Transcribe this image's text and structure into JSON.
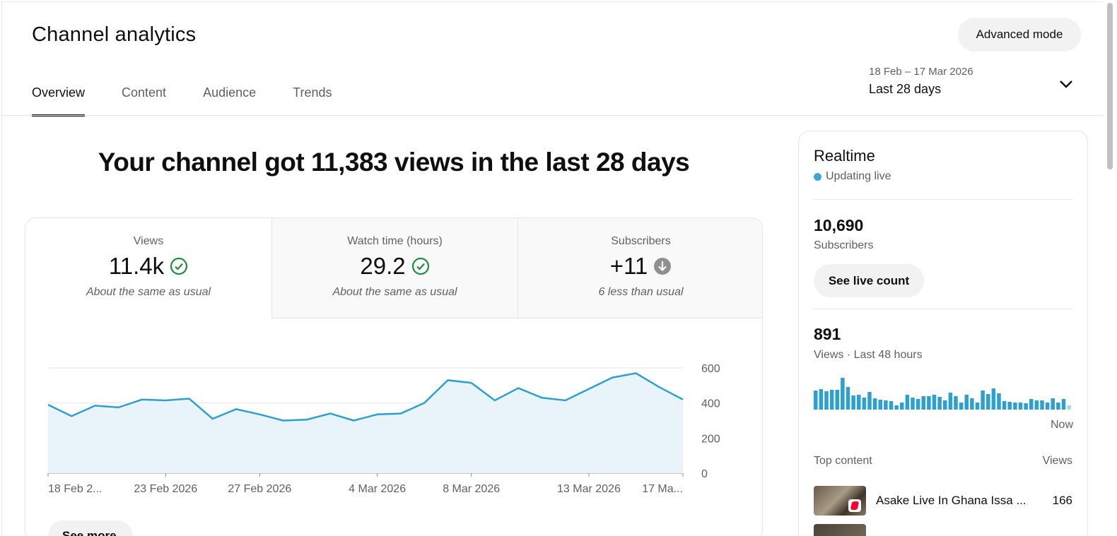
{
  "header": {
    "title": "Channel analytics",
    "advanced_mode_label": "Advanced mode"
  },
  "tabs": [
    {
      "label": "Overview",
      "active": true
    },
    {
      "label": "Content",
      "active": false
    },
    {
      "label": "Audience",
      "active": false
    },
    {
      "label": "Trends",
      "active": false
    }
  ],
  "date_range": {
    "dates": "18 Feb – 17 Mar 2026",
    "label": "Last 28 days"
  },
  "headline": "Your channel got 11,383 views in the last 28 days",
  "metrics": [
    {
      "label": "Views",
      "value": "11.4k",
      "note": "About the same as usual",
      "status_icon": "check-circle-icon",
      "status_color": "#1e8e3e"
    },
    {
      "label": "Watch time (hours)",
      "value": "29.2",
      "note": "About the same as usual",
      "status_icon": "check-circle-icon",
      "status_color": "#1e8e3e"
    },
    {
      "label": "Subscribers",
      "value": "+11",
      "note": "6 less than usual",
      "status_icon": "arrow-down-circle-icon",
      "status_color": "#909090"
    }
  ],
  "chart_data": {
    "type": "area",
    "x": [
      "18 Feb 2026",
      "19 Feb 2026",
      "20 Feb 2026",
      "21 Feb 2026",
      "22 Feb 2026",
      "23 Feb 2026",
      "24 Feb 2026",
      "25 Feb 2026",
      "26 Feb 2026",
      "27 Feb 2026",
      "28 Feb 2026",
      "1 Mar 2026",
      "2 Mar 2026",
      "3 Mar 2026",
      "4 Mar 2026",
      "5 Mar 2026",
      "6 Mar 2026",
      "7 Mar 2026",
      "8 Mar 2026",
      "9 Mar 2026",
      "10 Mar 2026",
      "11 Mar 2026",
      "12 Mar 2026",
      "13 Mar 2026",
      "14 Mar 2026",
      "15 Mar 2026",
      "16 Mar 2026",
      "17 Mar 2026"
    ],
    "series": [
      {
        "values": [
          390,
          325,
          385,
          375,
          420,
          415,
          425,
          310,
          365,
          335,
          300,
          305,
          340,
          300,
          335,
          340,
          400,
          530,
          515,
          415,
          485,
          430,
          415,
          480,
          545,
          570,
          490,
          420
        ]
      }
    ],
    "x_tick_labels": [
      "18 Feb 2...",
      "23 Feb 2026",
      "27 Feb 2026",
      "4 Mar 2026",
      "8 Mar 2026",
      "13 Mar 2026",
      "17 Ma..."
    ],
    "x_tick_index": [
      0,
      5,
      9,
      14,
      18,
      23,
      27
    ],
    "y_ticks": [
      0,
      200,
      400,
      600
    ],
    "ylim": [
      0,
      600
    ],
    "y_axis_side": "right",
    "grid": true,
    "line_color": "#2ea0cd",
    "fill_color": "#e8f4fa"
  },
  "see_more_label": "See more",
  "realtime": {
    "title": "Realtime",
    "live_label": "Updating live",
    "live_dot_color": "#3ea6d6",
    "subscribers_value": "10,690",
    "subscribers_label": "Subscribers",
    "live_count_button": "See live count",
    "views_value": "891",
    "views_label": "Views · Last 48 hours",
    "now_label": "Now",
    "bar_values": [
      27,
      29,
      26,
      28,
      28,
      45,
      32,
      20,
      21,
      17,
      25,
      16,
      14,
      13,
      12,
      6,
      10,
      21,
      17,
      15,
      19,
      19,
      21,
      18,
      13,
      24,
      19,
      10,
      21,
      16,
      10,
      27,
      22,
      30,
      23,
      12,
      11,
      10,
      10,
      9,
      15,
      13,
      13,
      10,
      16,
      10,
      15,
      6
    ],
    "bar_color": "#2ea0cd"
  },
  "top_content": {
    "header_left": "Top content",
    "header_right": "Views",
    "items": [
      {
        "title": "Asake Live In Ghana Issa ...",
        "views": "166"
      }
    ]
  }
}
